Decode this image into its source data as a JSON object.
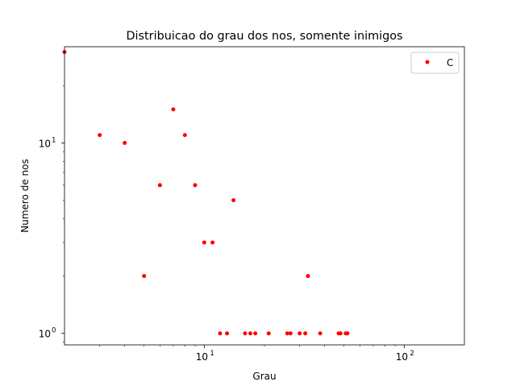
{
  "chart_data": {
    "type": "scatter",
    "title": "Distribuicao do grau dos nos, somente inimigos",
    "xlabel": "Grau",
    "ylabel": "Numero de nos",
    "x_scale": "log",
    "y_scale": "log",
    "xlim": [
      2,
      200
    ],
    "ylim": [
      0.87,
      32
    ],
    "x_ticks": [
      {
        "value": 10,
        "base": "10",
        "exp": "1"
      },
      {
        "value": 100,
        "base": "10",
        "exp": "2"
      }
    ],
    "y_ticks": [
      {
        "value": 1,
        "base": "10",
        "exp": "0"
      },
      {
        "value": 10,
        "base": "10",
        "exp": "1"
      }
    ],
    "grid": false,
    "legend_position": "top-right",
    "series": [
      {
        "name": "C",
        "color": "#ff0000",
        "marker": "point",
        "points": [
          {
            "x": 2,
            "y": 30
          },
          {
            "x": 3,
            "y": 11
          },
          {
            "x": 4,
            "y": 10
          },
          {
            "x": 5,
            "y": 2
          },
          {
            "x": 6,
            "y": 6
          },
          {
            "x": 7,
            "y": 15
          },
          {
            "x": 8,
            "y": 11
          },
          {
            "x": 9,
            "y": 6
          },
          {
            "x": 10,
            "y": 3
          },
          {
            "x": 11,
            "y": 3
          },
          {
            "x": 12,
            "y": 1
          },
          {
            "x": 13,
            "y": 1
          },
          {
            "x": 14,
            "y": 5
          },
          {
            "x": 16,
            "y": 1
          },
          {
            "x": 17,
            "y": 1
          },
          {
            "x": 18,
            "y": 1
          },
          {
            "x": 21,
            "y": 1
          },
          {
            "x": 26,
            "y": 1
          },
          {
            "x": 27,
            "y": 1
          },
          {
            "x": 30,
            "y": 1
          },
          {
            "x": 32,
            "y": 1
          },
          {
            "x": 33,
            "y": 2
          },
          {
            "x": 38,
            "y": 1
          },
          {
            "x": 47,
            "y": 1
          },
          {
            "x": 48,
            "y": 1
          },
          {
            "x": 51,
            "y": 1
          },
          {
            "x": 52,
            "y": 1
          }
        ]
      }
    ]
  }
}
